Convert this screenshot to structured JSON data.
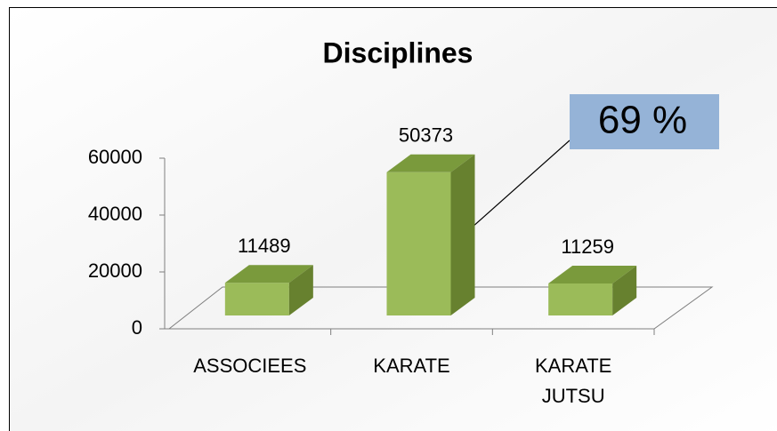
{
  "chart_data": {
    "type": "bar3d",
    "title": "Disciplines",
    "categories": [
      "ASSOCIEES",
      "KARATE",
      "KARATE JUTSU"
    ],
    "values": [
      11489,
      50373,
      11259
    ],
    "color": "#9bbb59",
    "ylim": [
      0,
      60000
    ],
    "yticks": [
      0,
      20000,
      40000,
      60000
    ],
    "annotation": "69 %"
  }
}
